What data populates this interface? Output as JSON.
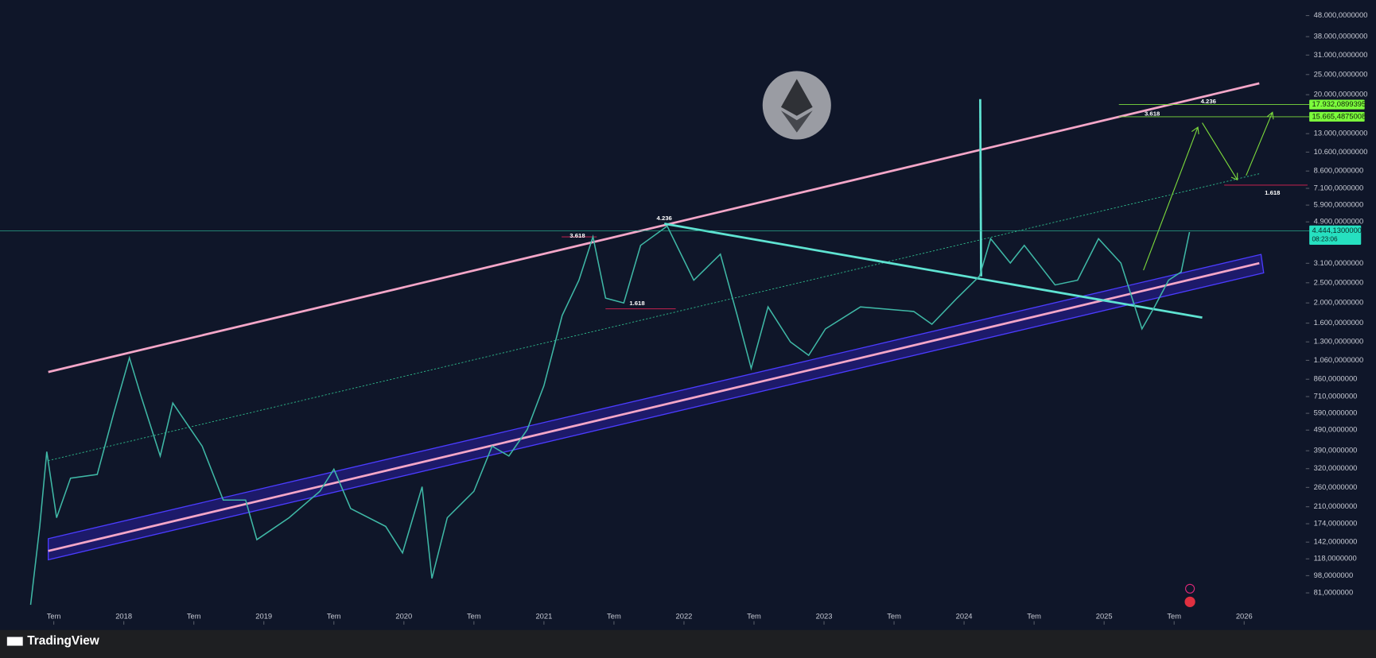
{
  "chart_data": {
    "type": "line",
    "log_scale": true,
    "color": "#3fb8a6",
    "x": [
      2017.335,
      2017.4,
      2017.45,
      2017.52,
      2017.62,
      2017.81,
      2017.93,
      2018.04,
      2018.12,
      2018.26,
      2018.35,
      2018.56,
      2018.71,
      2018.87,
      2018.95,
      2019.18,
      2019.4,
      2019.5,
      2019.62,
      2019.87,
      2019.99,
      2020.13,
      2020.2,
      2020.31,
      2020.5,
      2020.63,
      2020.75,
      2020.88,
      2021.0,
      2021.13,
      2021.25,
      2021.35,
      2021.44,
      2021.57,
      2021.69,
      2021.88,
      2022.07,
      2022.26,
      2022.38,
      2022.48,
      2022.6,
      2022.76,
      2022.89,
      2023.01,
      2023.26,
      2023.64,
      2023.77,
      2023.95,
      2024.11,
      2024.19,
      2024.33,
      2024.43,
      2024.65,
      2024.81,
      2024.96,
      2025.12,
      2025.27,
      2025.36,
      2025.46,
      2025.55,
      2025.61
    ],
    "values": [
      71,
      169,
      386,
      186,
      288,
      300,
      597,
      1090,
      725,
      368,
      661,
      410,
      226,
      226,
      146,
      186,
      249,
      318,
      206,
      169,
      126,
      262,
      95,
      186,
      249,
      410,
      368,
      492,
      800,
      1740,
      2570,
      4160,
      2110,
      2000,
      3780,
      4680,
      2570,
      3430,
      1740,
      970,
      1915,
      1300,
      1120,
      1500,
      1915,
      1820,
      1580,
      2110,
      2690,
      4070,
      3110,
      3780,
      2440,
      2570,
      4070,
      3110,
      1500,
      1915,
      2570,
      2820,
      4380
    ],
    "xlim": [
      2017.116,
      2026.44
    ],
    "xticks": [
      {
        "value": 2017.5,
        "label": "Tem"
      },
      2018,
      {
        "value": 2018.5,
        "label": "Tem"
      },
      2019,
      {
        "value": 2019.5,
        "label": "Tem"
      },
      2020,
      {
        "value": 2020.5,
        "label": "Tem"
      },
      2021,
      {
        "value": 2021.5,
        "label": "Tem"
      },
      2022,
      {
        "value": 2022.5,
        "label": "Tem"
      },
      2023,
      {
        "value": 2023.5,
        "label": "Tem"
      },
      2024,
      {
        "value": 2024.5,
        "label": "Tem"
      },
      2025,
      {
        "value": 2025.5,
        "label": "Tem"
      },
      2026
    ],
    "ylim": [
      57,
      57000
    ],
    "yticks": [
      {
        "value": 48000,
        "label": "48.000,0000000"
      },
      {
        "value": 38000,
        "label": "38.000,0000000"
      },
      {
        "value": 31000,
        "label": "31.000,0000000"
      },
      {
        "value": 25000,
        "label": "25.000,0000000"
      },
      {
        "value": 20000,
        "label": "20.000,0000000"
      },
      {
        "value": 13000,
        "label": "13.000,0000000"
      },
      {
        "value": 10600,
        "label": "10.600,0000000"
      },
      {
        "value": 8600,
        "label": "8.600,0000000"
      },
      {
        "value": 7100,
        "label": "7.100,0000000"
      },
      {
        "value": 5900,
        "label": "5.900,0000000"
      },
      {
        "value": 4900,
        "label": "4.900,0000000"
      },
      {
        "value": 3100,
        "label": "3.100,0000000"
      },
      {
        "value": 2500,
        "label": "2.500,0000000"
      },
      {
        "value": 2000,
        "label": "2.000,0000000"
      },
      {
        "value": 1600,
        "label": "1.600,0000000"
      },
      {
        "value": 1300,
        "label": "1.300,0000000"
      },
      {
        "value": 1060,
        "label": "1.060,0000000"
      },
      {
        "value": 860,
        "label": "860,0000000"
      },
      {
        "value": 710,
        "label": "710,0000000"
      },
      {
        "value": 590,
        "label": "590,0000000"
      },
      {
        "value": 490,
        "label": "490,0000000"
      },
      {
        "value": 390,
        "label": "390,0000000"
      },
      {
        "value": 320,
        "label": "320,0000000"
      },
      {
        "value": 260,
        "label": "260,0000000"
      },
      {
        "value": 210,
        "label": "210,0000000"
      },
      {
        "value": 174,
        "label": "174,0000000"
      },
      {
        "value": 142,
        "label": "142,0000000"
      },
      {
        "value": 118,
        "label": "118,0000000"
      },
      {
        "value": 98,
        "label": "98,0000000"
      },
      {
        "value": 81,
        "label": "81,0000000"
      }
    ],
    "levels": [
      {
        "value": 17932.0899395,
        "label": "17.932,0899395"
      },
      {
        "value": 15665.4875008,
        "label": "15.665,4875008"
      }
    ],
    "current_price": {
      "value": 4444.13,
      "label": "4.444,1300000"
    },
    "countdown": "08:23:06",
    "annotations": [
      "4.236",
      "3.618",
      "1.618",
      "3.618",
      "4.236",
      "1.618"
    ],
    "brand": "TradingView"
  }
}
